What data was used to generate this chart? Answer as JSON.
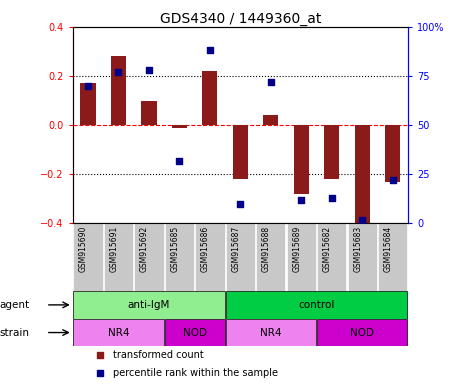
{
  "title": "GDS4340 / 1449360_at",
  "samples": [
    "GSM915690",
    "GSM915691",
    "GSM915692",
    "GSM915685",
    "GSM915686",
    "GSM915687",
    "GSM915688",
    "GSM915689",
    "GSM915682",
    "GSM915683",
    "GSM915684"
  ],
  "transformed_count": [
    0.17,
    0.28,
    0.1,
    -0.01,
    0.22,
    -0.22,
    0.04,
    -0.28,
    -0.22,
    -0.4,
    -0.23
  ],
  "percentile_rank": [
    70,
    77,
    78,
    32,
    88,
    10,
    72,
    12,
    13,
    2,
    22
  ],
  "bar_color": "#8B1A1A",
  "dot_color": "#00008B",
  "ylim": [
    -0.4,
    0.4
  ],
  "y2lim": [
    0,
    100
  ],
  "yticks": [
    -0.4,
    -0.2,
    0.0,
    0.2,
    0.4
  ],
  "y2ticks": [
    0,
    25,
    50,
    75,
    100
  ],
  "y2ticklabels": [
    "0",
    "25",
    "50",
    "75",
    "100%"
  ],
  "hlines_dotted": [
    -0.2,
    0.2
  ],
  "hline_dashed": 0.0,
  "agent_labels": [
    {
      "label": "anti-IgM",
      "start": 0,
      "end": 5,
      "color": "#90EE90"
    },
    {
      "label": "control",
      "start": 5,
      "end": 11,
      "color": "#00CC44"
    }
  ],
  "strain_labels": [
    {
      "label": "NR4",
      "start": 0,
      "end": 3,
      "color": "#EE82EE"
    },
    {
      "label": "NOD",
      "start": 3,
      "end": 5,
      "color": "#CC00CC"
    },
    {
      "label": "NR4",
      "start": 5,
      "end": 8,
      "color": "#EE82EE"
    },
    {
      "label": "NOD",
      "start": 8,
      "end": 11,
      "color": "#CC00CC"
    }
  ],
  "legend_items": [
    {
      "label": "transformed count",
      "color": "#8B1A1A"
    },
    {
      "label": "percentile rank within the sample",
      "color": "#00008B"
    }
  ],
  "title_fontsize": 10,
  "tick_fontsize": 7,
  "sample_fontsize": 5.5,
  "annot_fontsize": 7.5,
  "legend_fontsize": 7,
  "bar_width": 0.5,
  "dot_size": 16
}
